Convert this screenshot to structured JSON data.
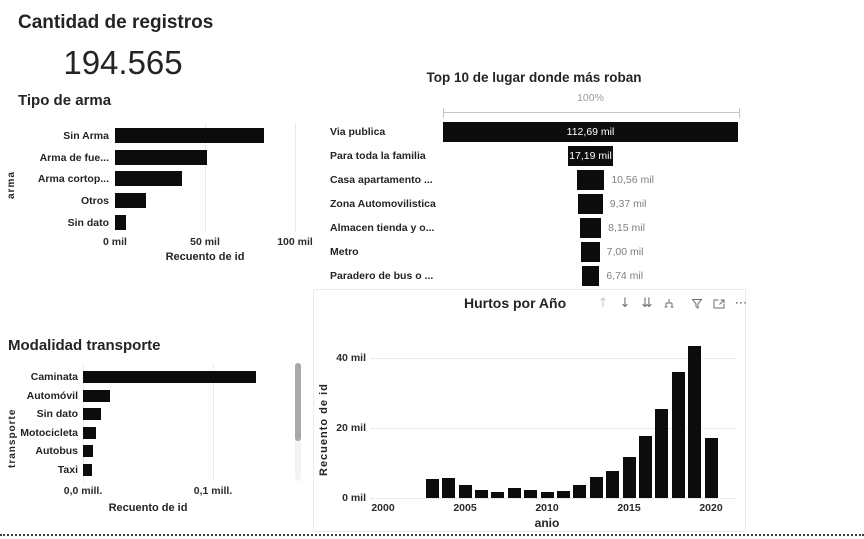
{
  "page": {
    "title": "Cantidad de registros",
    "total": "194.565"
  },
  "colors": {
    "bar": "#0c0c0c",
    "text": "#252423",
    "muted_value": "#7f7f7f",
    "gridline": "#d8d8d8"
  },
  "toolbar": {
    "drill_up_glyph": "↑",
    "drill_down_glyph": "↓",
    "drill_down_level_glyph": "⇊",
    "more_options_glyph": "⋯",
    "icons": [
      "drill-up",
      "drill-down",
      "go-to-next-level",
      "expand-all",
      "filter",
      "focus-mode",
      "more-options"
    ]
  },
  "chart_data": [
    {
      "id": "tipo_de_arma",
      "type": "bar",
      "orientation": "horizontal",
      "title": "Tipo de arma",
      "ylabel": "arma",
      "xlabel": "Recuento de id",
      "categories": [
        "Sin Arma",
        "Arma de fue...",
        "Arma cortop...",
        "Otros",
        "Sin dato"
      ],
      "values_mil": [
        83,
        51,
        37,
        17,
        6
      ],
      "x_ticks": [
        "0 mil",
        "50 mil",
        "100 mil"
      ],
      "x_tick_values_mil": [
        0,
        50,
        100
      ],
      "xlim_mil": [
        0,
        100
      ],
      "grid": "vertical-dotted"
    },
    {
      "id": "top10_lugares",
      "type": "bar",
      "style": "funnel-centered",
      "title": "Top 10 de lugar donde más roban",
      "scale_label": "100%",
      "max_mil": 112.69,
      "rows": [
        {
          "label": "Via publica",
          "value": "112,69 mil",
          "mil": 112.69,
          "label_inside": true
        },
        {
          "label": "Para toda la familia",
          "value": "17,19 mil",
          "mil": 17.19,
          "label_inside": true
        },
        {
          "label": "Casa apartamento ...",
          "value": "10,56 mil",
          "mil": 10.56,
          "label_inside": false
        },
        {
          "label": "Zona Automovilistica",
          "value": "9,37 mil",
          "mil": 9.37,
          "label_inside": false
        },
        {
          "label": "Almacen tienda y o...",
          "value": "8,15 mil",
          "mil": 8.15,
          "label_inside": false
        },
        {
          "label": "Metro",
          "value": "7,00 mil",
          "mil": 7.0,
          "label_inside": false
        },
        {
          "label": "Paradero de bus o ...",
          "value": "6,74 mil",
          "mil": 6.74,
          "label_inside": false
        }
      ]
    },
    {
      "id": "modalidad_transporte",
      "type": "bar",
      "orientation": "horizontal",
      "title": "Modalidad transporte",
      "ylabel": "transporte",
      "xlabel": "Recuento de id",
      "categories": [
        "Caminata",
        "Automóvil",
        "Sin dato",
        "Motocicleta",
        "Autobus",
        "Taxi"
      ],
      "values_mill": [
        0.133,
        0.021,
        0.014,
        0.01,
        0.008,
        0.007
      ],
      "x_ticks": [
        "0,0 mill.",
        "0,1 mill."
      ],
      "x_tick_values_mill": [
        0.0,
        0.1
      ],
      "xlim_mill": [
        0,
        0.14
      ],
      "grid": "vertical-dotted",
      "has_scrollbar": true
    },
    {
      "id": "hurtos_por_anio",
      "type": "bar",
      "orientation": "vertical",
      "title": "Hurtos por Año",
      "ylabel": "Recuento de id",
      "xlabel": "anio",
      "y_ticks": [
        "0 mil",
        "20 mil",
        "40 mil"
      ],
      "y_tick_values_mil": [
        0,
        20,
        40
      ],
      "ylim_mil": [
        0,
        45
      ],
      "x_ticks": [
        "2000",
        "2005",
        "2010",
        "2015",
        "2020"
      ],
      "x_tick_values": [
        2000,
        2005,
        2010,
        2015,
        2020
      ],
      "xlim": [
        2000,
        2020
      ],
      "years": [
        2003,
        2004,
        2005,
        2006,
        2007,
        2008,
        2009,
        2010,
        2011,
        2012,
        2013,
        2014,
        2015,
        2016,
        2017,
        2018,
        2019,
        2020
      ],
      "values_mil": [
        5.4,
        5.6,
        3.6,
        2.3,
        1.8,
        2.8,
        2.3,
        1.6,
        1.9,
        3.6,
        5.9,
        7.8,
        11.7,
        17.8,
        25.5,
        36.0,
        43.5,
        17.1
      ],
      "grid": "horizontal-dotted"
    }
  ]
}
